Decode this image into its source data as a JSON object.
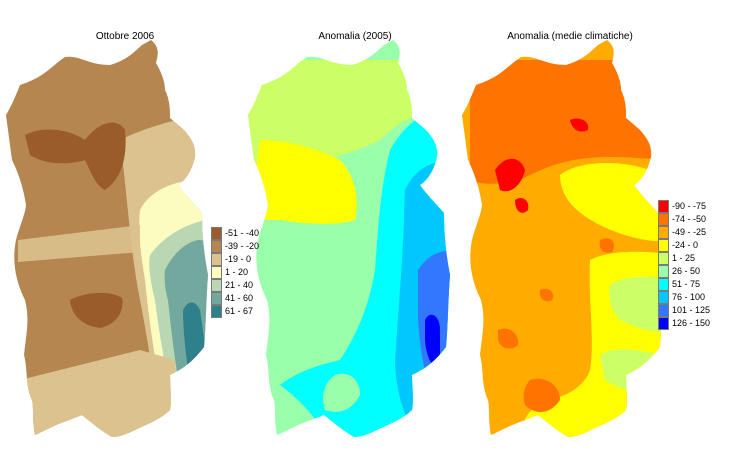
{
  "panels": [
    {
      "title": "Ottobre 2006"
    },
    {
      "title": "Anomalia (2005)"
    },
    {
      "title": "Anomalia (medie climatiche)"
    }
  ],
  "legend_left": {
    "items": [
      {
        "label": "-51 - -40",
        "color": "#9a5c2a"
      },
      {
        "label": "-39 - -20",
        "color": "#b5864f"
      },
      {
        "label": "-19 - 0",
        "color": "#dcc28e"
      },
      {
        "label": "1 - 20",
        "color": "#fdfcc0"
      },
      {
        "label": "21 - 40",
        "color": "#b8d7b2"
      },
      {
        "label": "41 - 60",
        "color": "#73a89f"
      },
      {
        "label": "61 - 67",
        "color": "#2e808a"
      }
    ]
  },
  "legend_right": {
    "items": [
      {
        "label": "-90 - -75",
        "color": "#ff0000"
      },
      {
        "label": "-74 - -50",
        "color": "#ff7300"
      },
      {
        "label": "-49 - -25",
        "color": "#ffab00"
      },
      {
        "label": "-24 - 0",
        "color": "#ffff00"
      },
      {
        "label": "1 - 25",
        "color": "#ccff66"
      },
      {
        "label": "26 - 50",
        "color": "#99ffaa"
      },
      {
        "label": "51 - 75",
        "color": "#00ffff"
      },
      {
        "label": "76 - 100",
        "color": "#00c8ff"
      },
      {
        "label": "101 - 125",
        "color": "#3377ff"
      },
      {
        "label": "126 - 150",
        "color": "#0000ff"
      }
    ]
  }
}
